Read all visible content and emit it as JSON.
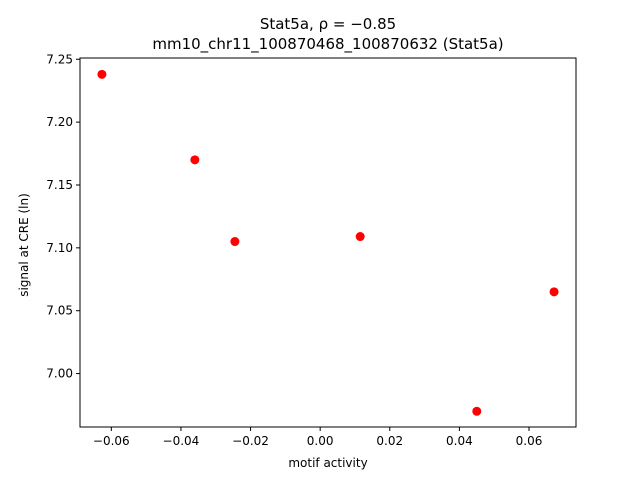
{
  "chart_data": {
    "type": "scatter",
    "title_line1": "Stat5a, ρ = −0.85",
    "title_line2": "mm10_chr11_100870468_100870632 (Stat5a)",
    "xlabel": "motif activity",
    "ylabel": "signal at CRE (ln)",
    "xlim": [
      -0.069,
      0.0735
    ],
    "ylim": [
      6.9575,
      7.251
    ],
    "xticks": [
      -0.06,
      -0.04,
      -0.02,
      0.0,
      0.02,
      0.04,
      0.06
    ],
    "xtick_labels": [
      "−0.06",
      "−0.04",
      "−0.02",
      "0.00",
      "0.02",
      "0.04",
      "0.06"
    ],
    "yticks": [
      7.0,
      7.05,
      7.1,
      7.15,
      7.2,
      7.25
    ],
    "ytick_labels": [
      "7.00",
      "7.05",
      "7.10",
      "7.15",
      "7.20",
      "7.25"
    ],
    "grid": false,
    "marker_color": "#ff0000",
    "points": [
      {
        "x": -0.0627,
        "y": 7.238
      },
      {
        "x": -0.036,
        "y": 7.17
      },
      {
        "x": -0.0245,
        "y": 7.105
      },
      {
        "x": 0.0115,
        "y": 7.109
      },
      {
        "x": 0.045,
        "y": 6.97
      },
      {
        "x": 0.0672,
        "y": 7.065
      }
    ]
  }
}
